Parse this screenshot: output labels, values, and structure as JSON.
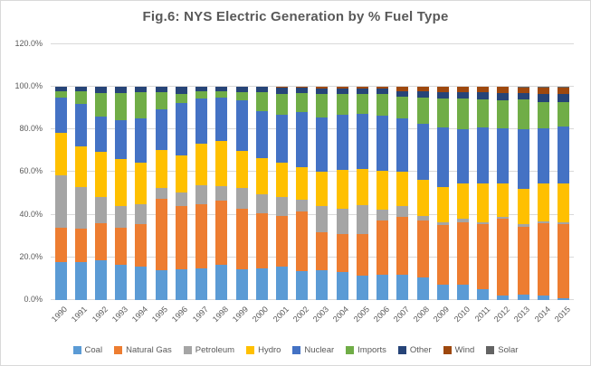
{
  "title": "Fig.6: NYS Electric Generation by % Fuel Type",
  "colors": {
    "grid": "#d9d9d9",
    "text": "#595959",
    "background": "#ffffff"
  },
  "y_axis": {
    "tick_labels": [
      "0.0%",
      "20.0%",
      "40.0%",
      "60.0%",
      "80.0%",
      "100.0%",
      "120.0%"
    ],
    "tick_values": [
      0,
      20,
      40,
      60,
      80,
      100,
      120
    ]
  },
  "chart_data": {
    "type": "bar",
    "subtype": "stacked-100",
    "title": "Fig.6: NYS Electric Generation by % Fuel Type",
    "xlabel": "",
    "ylabel": "",
    "ylim": [
      0,
      120
    ],
    "grid": true,
    "legend_position": "bottom",
    "categories": [
      "1990",
      "1991",
      "1992",
      "1993",
      "1994",
      "1995",
      "1996",
      "1997",
      "1998",
      "1999",
      "2000",
      "2001",
      "2002",
      "2003",
      "2004",
      "2005",
      "2006",
      "2007",
      "2008",
      "2009",
      "2010",
      "2011",
      "2012",
      "2013",
      "2014",
      "2015"
    ],
    "units": "percent",
    "series": [
      {
        "name": "Coal",
        "color": "#5B9BD5",
        "values": [
          18,
          18,
          18.5,
          16.5,
          15.5,
          14,
          14.5,
          15,
          16.5,
          14.5,
          15,
          15.5,
          13.5,
          14,
          13,
          11.5,
          12,
          12,
          10.5,
          7,
          7,
          5,
          2,
          2.5,
          2,
          1
        ]
      },
      {
        "name": "Natural Gas",
        "color": "#ED7D31",
        "values": [
          16,
          15.5,
          17.5,
          17.5,
          20,
          33.5,
          29.5,
          30,
          30,
          28.5,
          25.5,
          24,
          28,
          18,
          18,
          19.5,
          25.5,
          27,
          27,
          28,
          29.5,
          30.5,
          36,
          32,
          34,
          34.5
        ]
      },
      {
        "name": "Petroleum",
        "color": "#A5A5A5",
        "values": [
          24.5,
          19.5,
          12.5,
          10,
          9.5,
          5,
          6.5,
          9,
          7,
          9.5,
          9,
          9,
          5.5,
          12,
          12,
          13.5,
          5,
          5,
          2,
          1.5,
          1.5,
          1,
          1,
          1,
          1,
          1
        ]
      },
      {
        "name": "Hydro",
        "color": "#FFC000",
        "values": [
          20,
          19,
          21,
          22,
          19.5,
          18,
          17.5,
          19.5,
          21,
          17.5,
          17,
          16,
          15.5,
          16,
          18,
          17,
          18,
          16,
          17,
          16.5,
          16.5,
          18,
          15.5,
          16.5,
          17.5,
          18
        ]
      },
      {
        "name": "Nuclear",
        "color": "#4472C4",
        "values": [
          16.5,
          20,
          16.5,
          18.5,
          20.5,
          19,
          24.5,
          21,
          20.5,
          23.5,
          22,
          22.5,
          25.5,
          25.5,
          26,
          26,
          26,
          25,
          26,
          28,
          25.5,
          26.5,
          26,
          28,
          26,
          27
        ]
      },
      {
        "name": "Imports",
        "color": "#70AD47",
        "values": [
          3,
          6,
          11,
          12.5,
          12.5,
          8,
          4,
          3.5,
          3,
          4,
          9,
          9.5,
          9,
          11,
          9.5,
          9,
          10,
          10.5,
          12.5,
          13.5,
          14.5,
          13,
          13,
          14,
          12.5,
          11.5
        ]
      },
      {
        "name": "Other",
        "color": "#264478",
        "values": [
          2,
          2,
          3,
          3,
          2.5,
          2.5,
          3.5,
          2,
          2,
          2.5,
          2.5,
          3,
          2.5,
          2.5,
          2.5,
          2.5,
          2.5,
          2.5,
          3,
          3,
          3,
          3.5,
          3.5,
          3,
          3.5,
          3.5
        ]
      },
      {
        "name": "Wind",
        "color": "#9E480E",
        "values": [
          0,
          0,
          0,
          0,
          0,
          0,
          0,
          0,
          0,
          0,
          0,
          0.5,
          0.5,
          1,
          1,
          1,
          1,
          2,
          2,
          2.5,
          2.5,
          2.5,
          3,
          2.5,
          3,
          3
        ]
      },
      {
        "name": "Solar",
        "color": "#636363",
        "values": [
          0,
          0,
          0,
          0,
          0,
          0,
          0,
          0,
          0,
          0,
          0,
          0,
          0,
          0,
          0,
          0,
          0,
          0,
          0,
          0,
          0,
          0,
          0,
          0.5,
          0.5,
          0.5
        ]
      }
    ]
  }
}
